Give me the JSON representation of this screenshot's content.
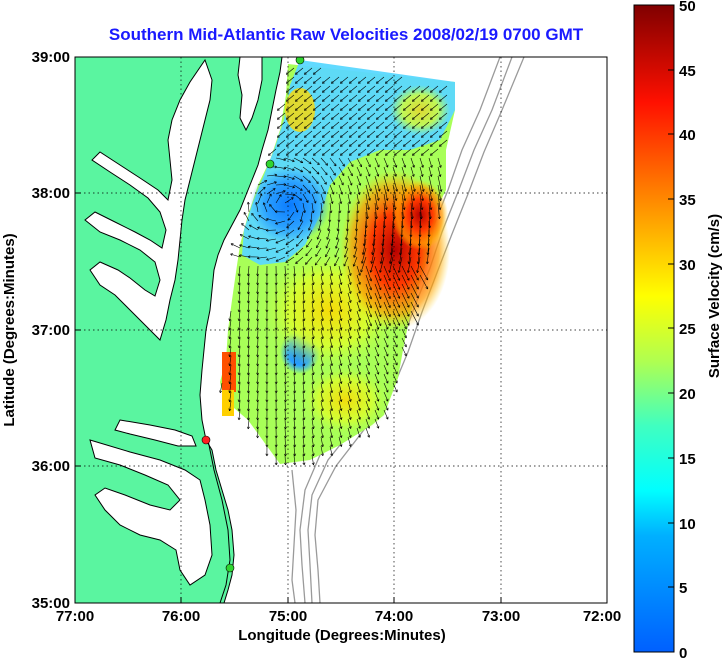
{
  "map": {
    "title": "Southern Mid-Atlantic Raw Velocities 2008/02/19 0700 GMT",
    "xlabel": "Longitude (Degrees:Minutes)",
    "ylabel": "Latitude (Degrees:Minutes)",
    "x_ticks": [
      "77:00",
      "76:00",
      "75:00",
      "74:00",
      "73:00",
      "72:00"
    ],
    "y_ticks": [
      "39:00",
      "38:00",
      "37:00",
      "36:00",
      "35:00"
    ],
    "lon_range": [
      -77,
      -72
    ],
    "lat_range": [
      35,
      39
    ],
    "grid": "dotted"
  },
  "colorbar": {
    "label": "Surface Velocity (cm/s)",
    "range": [
      0,
      50
    ],
    "ticks": [
      "0",
      "5",
      "10",
      "15",
      "20",
      "25",
      "30",
      "35",
      "40",
      "45",
      "50"
    ]
  },
  "colors": {
    "land": "#5af5a0",
    "coast": "#000000",
    "bathymetry": "#9a9a9a",
    "title": "#1a1aff",
    "colormap": [
      "#0000a0",
      "#0060ff",
      "#00ffff",
      "#7fff7f",
      "#ffff00",
      "#ff8000",
      "#ff0000",
      "#800000"
    ]
  },
  "stations": [
    {
      "lon": -74.88,
      "lat": 38.98,
      "color": "#2fd52f"
    },
    {
      "lon": -75.15,
      "lat": 38.22,
      "color": "#2fd52f"
    },
    {
      "lon": -75.72,
      "lat": 36.18,
      "color": "#ff2020"
    },
    {
      "lon": -75.5,
      "lat": 35.25,
      "color": "#2fd52f"
    }
  ],
  "velocity_field": {
    "description_regions": [
      {
        "lon": -74.9,
        "lat": 37.9,
        "speed": 5
      },
      {
        "lon": -74.1,
        "lat": 37.6,
        "speed": 42
      },
      {
        "lon": -74.2,
        "lat": 37.2,
        "speed": 40
      },
      {
        "lon": -74.5,
        "lat": 36.6,
        "speed": 22
      },
      {
        "lon": -74.9,
        "lat": 36.8,
        "speed": 8
      },
      {
        "lon": -74.3,
        "lat": 38.8,
        "speed": 12
      },
      {
        "lon": -75.6,
        "lat": 36.6,
        "speed": 38
      }
    ]
  }
}
